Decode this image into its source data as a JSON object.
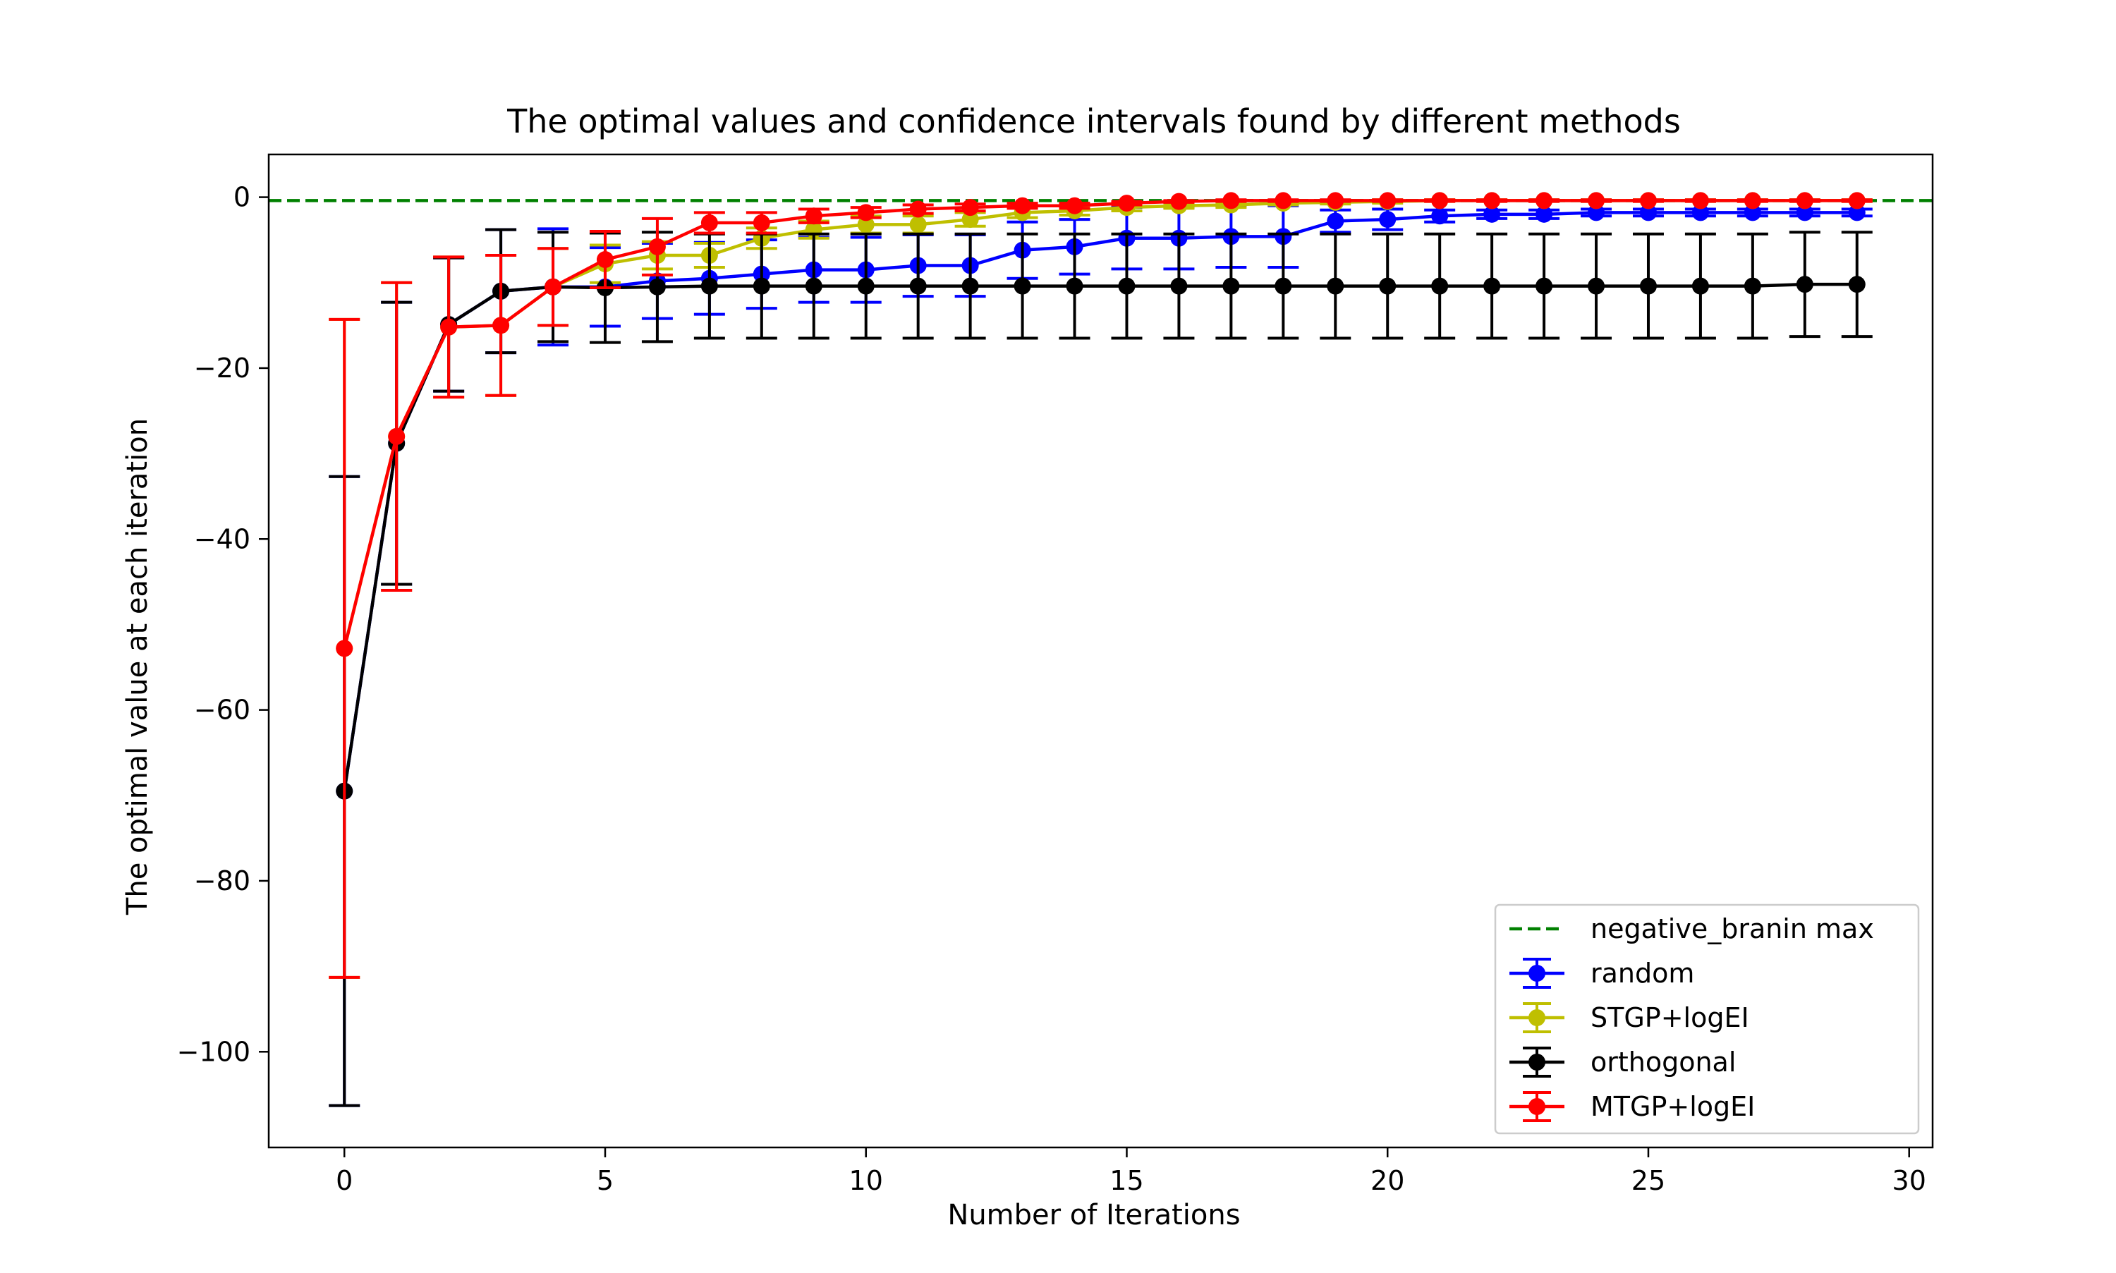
{
  "chart_data": {
    "type": "line",
    "title": "The optimal values and confidence intervals found by different methods",
    "xlabel": "Number of Iterations",
    "ylabel": "The optimal value at each iteration",
    "xlim": [
      -1.45,
      30.45
    ],
    "ylim": [
      -111.2,
      5.0
    ],
    "xticks": [
      0,
      5,
      10,
      15,
      20,
      25,
      30
    ],
    "yticks": [
      0,
      -20,
      -40,
      -60,
      -80,
      -100
    ],
    "grid": false,
    "legend_position": "lower-right",
    "reference_line": {
      "name": "negative_branin max",
      "y": -0.398,
      "color": "#008000",
      "style": "dashed"
    },
    "x": [
      0,
      1,
      2,
      3,
      4,
      5,
      6,
      7,
      8,
      9,
      10,
      11,
      12,
      13,
      14,
      15,
      16,
      17,
      18,
      19,
      20,
      21,
      22,
      23,
      24,
      25,
      26,
      27,
      28,
      29
    ],
    "series": [
      {
        "name": "random",
        "color": "#0000ff",
        "values": [
          -69.5,
          -28.8,
          -14.9,
          -11.0,
          -10.5,
          -10.5,
          -9.8,
          -9.5,
          -9.0,
          -8.5,
          -8.5,
          -8.0,
          -8.0,
          -6.2,
          -5.8,
          -4.8,
          -4.8,
          -4.6,
          -4.6,
          -2.8,
          -2.6,
          -2.2,
          -2.0,
          -2.0,
          -1.8,
          -1.8,
          -1.8,
          -1.8,
          -1.8,
          -1.8
        ],
        "err": [
          36.8,
          16.5,
          7.8,
          7.2,
          6.8,
          4.6,
          4.4,
          4.2,
          4.0,
          3.8,
          3.8,
          3.6,
          3.6,
          3.3,
          3.2,
          3.6,
          3.6,
          3.6,
          3.6,
          1.3,
          1.2,
          0.7,
          0.5,
          0.5,
          0.4,
          0.4,
          0.4,
          0.4,
          0.4,
          0.4
        ]
      },
      {
        "name": "STGP+logEI",
        "color": "#bfbf00",
        "values": [
          -52.8,
          -28.0,
          -15.2,
          -15.0,
          -10.5,
          -7.8,
          -6.8,
          -6.8,
          -4.8,
          -3.8,
          -3.2,
          -3.2,
          -2.6,
          -1.8,
          -1.6,
          -1.2,
          -1.0,
          -0.9,
          -0.7,
          -0.6,
          -0.5,
          -0.4,
          -0.4,
          -0.4,
          -0.4,
          -0.4,
          -0.4,
          -0.4,
          -0.4,
          -0.4
        ],
        "err": [
          38.5,
          18.0,
          8.2,
          8.2,
          4.5,
          2.2,
          1.6,
          1.4,
          1.2,
          1.0,
          1.0,
          1.0,
          0.8,
          0.6,
          0.5,
          0.4,
          0.3,
          0.3,
          0.2,
          0.2,
          0.2,
          0.1,
          0.1,
          0.1,
          0.1,
          0.1,
          0.1,
          0.1,
          0.1,
          0.1
        ]
      },
      {
        "name": "orthogonal",
        "color": "#000000",
        "values": [
          -69.5,
          -28.8,
          -14.9,
          -11.0,
          -10.5,
          -10.6,
          -10.5,
          -10.4,
          -10.4,
          -10.4,
          -10.4,
          -10.4,
          -10.4,
          -10.4,
          -10.4,
          -10.4,
          -10.4,
          -10.4,
          -10.4,
          -10.4,
          -10.4,
          -10.4,
          -10.4,
          -10.4,
          -10.4,
          -10.4,
          -10.4,
          -10.4,
          -10.2,
          -10.2
        ],
        "err": [
          36.8,
          16.5,
          7.8,
          7.2,
          6.4,
          6.4,
          6.4,
          6.1,
          6.1,
          6.1,
          6.1,
          6.1,
          6.1,
          6.1,
          6.1,
          6.1,
          6.1,
          6.1,
          6.1,
          6.1,
          6.1,
          6.1,
          6.1,
          6.1,
          6.1,
          6.1,
          6.1,
          6.1,
          6.1,
          6.1
        ]
      },
      {
        "name": "MTGP+logEI",
        "color": "#ff0000",
        "values": [
          -52.8,
          -28.0,
          -15.2,
          -15.0,
          -10.5,
          -7.3,
          -5.8,
          -3.0,
          -3.0,
          -2.2,
          -1.8,
          -1.4,
          -1.2,
          -1.0,
          -1.0,
          -0.7,
          -0.5,
          -0.4,
          -0.4,
          -0.4,
          -0.4,
          -0.4,
          -0.4,
          -0.4,
          -0.4,
          -0.4,
          -0.4,
          -0.4,
          -0.4,
          -0.4
        ],
        "err": [
          38.5,
          18.0,
          8.2,
          8.2,
          4.5,
          3.3,
          3.3,
          1.2,
          1.2,
          0.8,
          0.6,
          0.5,
          0.4,
          0.3,
          0.3,
          0.2,
          0.1,
          0.1,
          0.1,
          0.1,
          0.1,
          0.1,
          0.1,
          0.1,
          0.1,
          0.1,
          0.1,
          0.1,
          0.1,
          0.1
        ]
      }
    ]
  }
}
